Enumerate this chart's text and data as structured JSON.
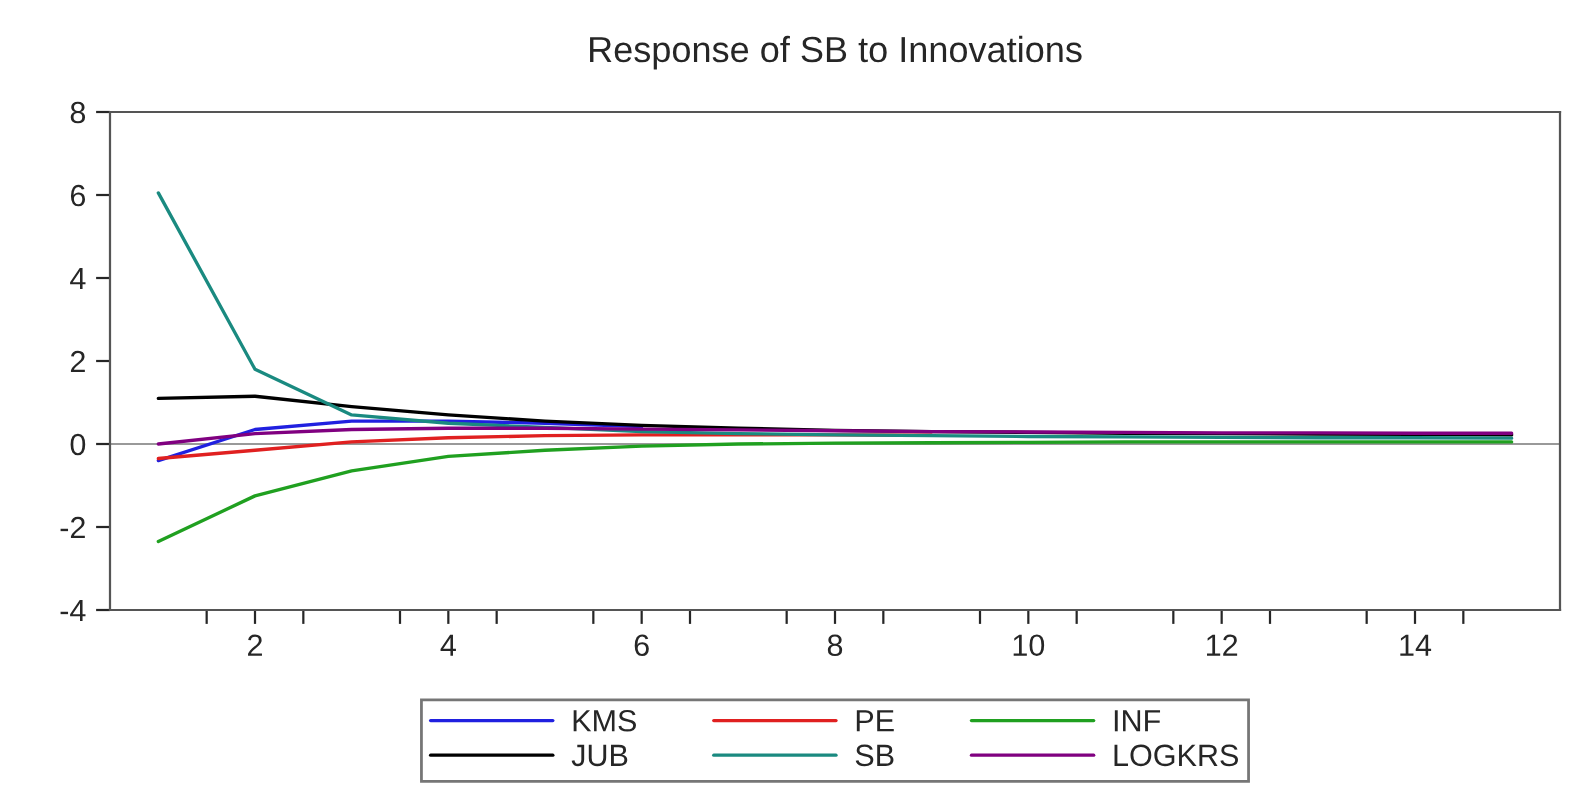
{
  "chart_data": {
    "type": "line",
    "title": "Response of SB to Innovations",
    "x": [
      1,
      2,
      3,
      4,
      5,
      6,
      7,
      8,
      9,
      10,
      11,
      12,
      13,
      14,
      15
    ],
    "series": [
      {
        "name": "KMS",
        "color": "#2020e0",
        "values": [
          -0.4,
          0.35,
          0.55,
          0.55,
          0.5,
          0.42,
          null,
          null,
          null,
          null,
          null,
          null,
          null,
          null,
          null
        ]
      },
      {
        "name": "PE",
        "color": "#e02020",
        "values": [
          -0.35,
          -0.15,
          0.05,
          0.15,
          0.2,
          0.22,
          0.22,
          0.22,
          0.21,
          null,
          null,
          null,
          null,
          null,
          null
        ]
      },
      {
        "name": "INF",
        "color": "#20a020",
        "values": [
          -2.35,
          -1.25,
          -0.65,
          -0.3,
          -0.15,
          -0.05,
          0.0,
          0.02,
          0.03,
          0.04,
          0.05,
          0.05,
          0.05,
          0.05,
          0.05
        ]
      },
      {
        "name": "JUB",
        "color": "#000000",
        "values": [
          1.1,
          1.15,
          0.9,
          0.7,
          0.55,
          0.45,
          0.38,
          0.33,
          0.3,
          0.28,
          0.26,
          0.25,
          0.24,
          0.23,
          0.22
        ]
      },
      {
        "name": "SB",
        "color": "#1a8a80",
        "values": [
          6.05,
          1.8,
          0.7,
          0.5,
          0.4,
          0.3,
          0.25,
          0.22,
          0.2,
          0.18,
          0.17,
          0.16,
          0.15,
          0.15,
          0.14
        ]
      },
      {
        "name": "LOGKRS",
        "color": "#800080",
        "values": [
          0.0,
          0.25,
          0.35,
          0.38,
          0.38,
          0.36,
          0.34,
          0.32,
          0.3,
          0.29,
          0.28,
          0.27,
          0.27,
          0.26,
          0.26
        ]
      }
    ],
    "xlim": [
      0.5,
      15.5
    ],
    "xticks": [
      {
        "value": 1.5,
        "label": null
      },
      {
        "value": 2,
        "label": "2"
      },
      {
        "value": 2.5,
        "label": null
      },
      {
        "value": 3.5,
        "label": null
      },
      {
        "value": 4,
        "label": "4"
      },
      {
        "value": 4.5,
        "label": null
      },
      {
        "value": 5.5,
        "label": null
      },
      {
        "value": 6,
        "label": "6"
      },
      {
        "value": 6.5,
        "label": null
      },
      {
        "value": 7.5,
        "label": null
      },
      {
        "value": 8,
        "label": "8"
      },
      {
        "value": 8.5,
        "label": null
      },
      {
        "value": 9.5,
        "label": null
      },
      {
        "value": 10,
        "label": "10"
      },
      {
        "value": 10.5,
        "label": null
      },
      {
        "value": 11.5,
        "label": null
      },
      {
        "value": 12,
        "label": "12"
      },
      {
        "value": 12.5,
        "label": null
      },
      {
        "value": 13.5,
        "label": null
      },
      {
        "value": 14,
        "label": "14"
      },
      {
        "value": 14.5,
        "label": null
      }
    ],
    "ylim": [
      -4,
      8
    ],
    "yticks": [
      -4,
      -2,
      0,
      2,
      4,
      6,
      8
    ],
    "ref_lines": [
      {
        "axis": "y",
        "value": 0,
        "color": "#999999"
      }
    ],
    "legend": "bottom",
    "grid": false,
    "marker": "none",
    "line_style": "solid"
  }
}
